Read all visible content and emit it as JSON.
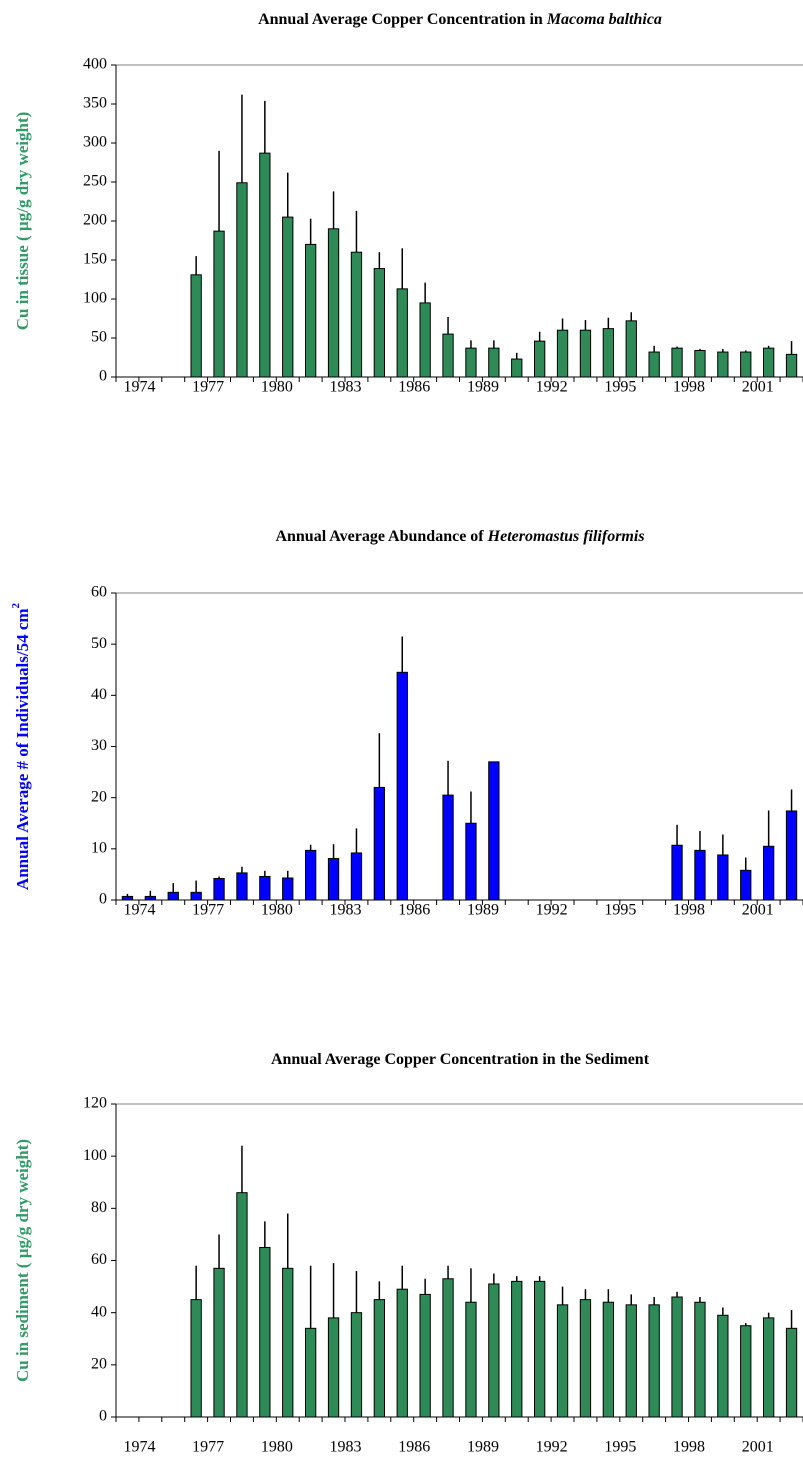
{
  "chart_data": [
    {
      "type": "bar",
      "title": "Annual Average Copper Concentration in ",
      "title_species": "Macoma balthica",
      "ylabel": "Cu in tissue ( µg/g dry weight)",
      "ylabel_color": "#339966",
      "categories": [
        "1974",
        null,
        null,
        "1977",
        null,
        null,
        "1980",
        null,
        null,
        "1983",
        null,
        null,
        "1986",
        null,
        null,
        "1989",
        null,
        null,
        "1992",
        null,
        null,
        "1995",
        null,
        null,
        "1998",
        null,
        null,
        "2001",
        null,
        null
      ],
      "series": [
        {
          "color": "#2e8b57",
          "values": [
            null,
            null,
            null,
            131,
            187,
            249,
            287,
            205,
            170,
            190,
            160,
            139,
            113,
            95,
            55,
            37,
            37,
            23,
            46,
            60,
            60,
            62,
            72,
            32,
            37,
            34,
            32,
            32,
            37,
            29
          ],
          "errors": [
            null,
            null,
            null,
            24,
            103,
            113,
            67,
            57,
            33,
            48,
            53,
            21,
            52,
            26,
            22,
            10,
            10,
            8,
            12,
            15,
            13,
            14,
            11,
            8,
            2,
            2,
            4,
            2,
            3,
            17
          ]
        }
      ],
      "ylim": [
        0,
        400
      ],
      "yticks": [
        0,
        50,
        100,
        150,
        200,
        250,
        300,
        350,
        400
      ]
    },
    {
      "type": "bar",
      "title": "Annual Average Abundance of ",
      "title_species": "Heteromastus filiformis",
      "ylabel": "Annual Average # of Individuals/54 cm",
      "ylabel_superscript": "2",
      "ylabel_color": "#0000ff",
      "categories": [
        "1974",
        null,
        null,
        "1977",
        null,
        null,
        "1980",
        null,
        null,
        "1983",
        null,
        null,
        "1986",
        null,
        null,
        "1989",
        null,
        null,
        "1992",
        null,
        null,
        "1995",
        null,
        null,
        "1998",
        null,
        null,
        "2001",
        null,
        null
      ],
      "series": [
        {
          "color": "#0000ff",
          "values": [
            0.7,
            0.7,
            1.5,
            1.5,
            4.2,
            5.3,
            4.6,
            4.3,
            9.7,
            8.1,
            9.2,
            22,
            44.5,
            null,
            20.5,
            15,
            27,
            null,
            null,
            null,
            null,
            null,
            null,
            null,
            10.7,
            9.7,
            8.8,
            5.8,
            10.5,
            17.4
          ],
          "errors": [
            0.5,
            1.1,
            1.8,
            2.3,
            0.4,
            1.2,
            1.1,
            1.4,
            1.1,
            2.8,
            4.8,
            10.6,
            7,
            null,
            6.7,
            6.2,
            null,
            null,
            null,
            null,
            null,
            null,
            null,
            null,
            4,
            3.8,
            4,
            2.5,
            7,
            4.2
          ]
        }
      ],
      "ylim": [
        0,
        60
      ],
      "yticks": [
        0,
        10,
        20,
        30,
        40,
        50,
        60
      ]
    },
    {
      "type": "bar",
      "title": "Annual Average Copper Concentration in the Sediment",
      "ylabel": "Cu in sediment ( µg/g dry weight)",
      "ylabel_color": "#339966",
      "categories": [
        "1974",
        null,
        null,
        "1977",
        null,
        null,
        "1980",
        null,
        null,
        "1983",
        null,
        null,
        "1986",
        null,
        null,
        "1989",
        null,
        null,
        "1992",
        null,
        null,
        "1995",
        null,
        null,
        "1998",
        null,
        null,
        "2001",
        null,
        null
      ],
      "series": [
        {
          "color": "#2e8b57",
          "values": [
            null,
            null,
            null,
            45,
            57,
            86,
            65,
            57,
            34,
            38,
            40,
            45,
            49,
            47,
            53,
            44,
            51,
            52,
            52,
            43,
            45,
            44,
            43,
            43,
            46,
            44,
            39,
            35,
            38,
            34
          ],
          "errors": [
            null,
            null,
            null,
            13,
            13,
            18,
            10,
            21,
            24,
            21,
            16,
            7,
            9,
            6,
            5,
            13,
            4,
            2,
            2,
            7,
            4,
            5,
            4,
            3,
            2,
            2,
            3,
            1,
            2,
            7
          ]
        }
      ],
      "ylim": [
        0,
        120
      ],
      "yticks": [
        0,
        20,
        40,
        60,
        80,
        100,
        120
      ]
    }
  ]
}
